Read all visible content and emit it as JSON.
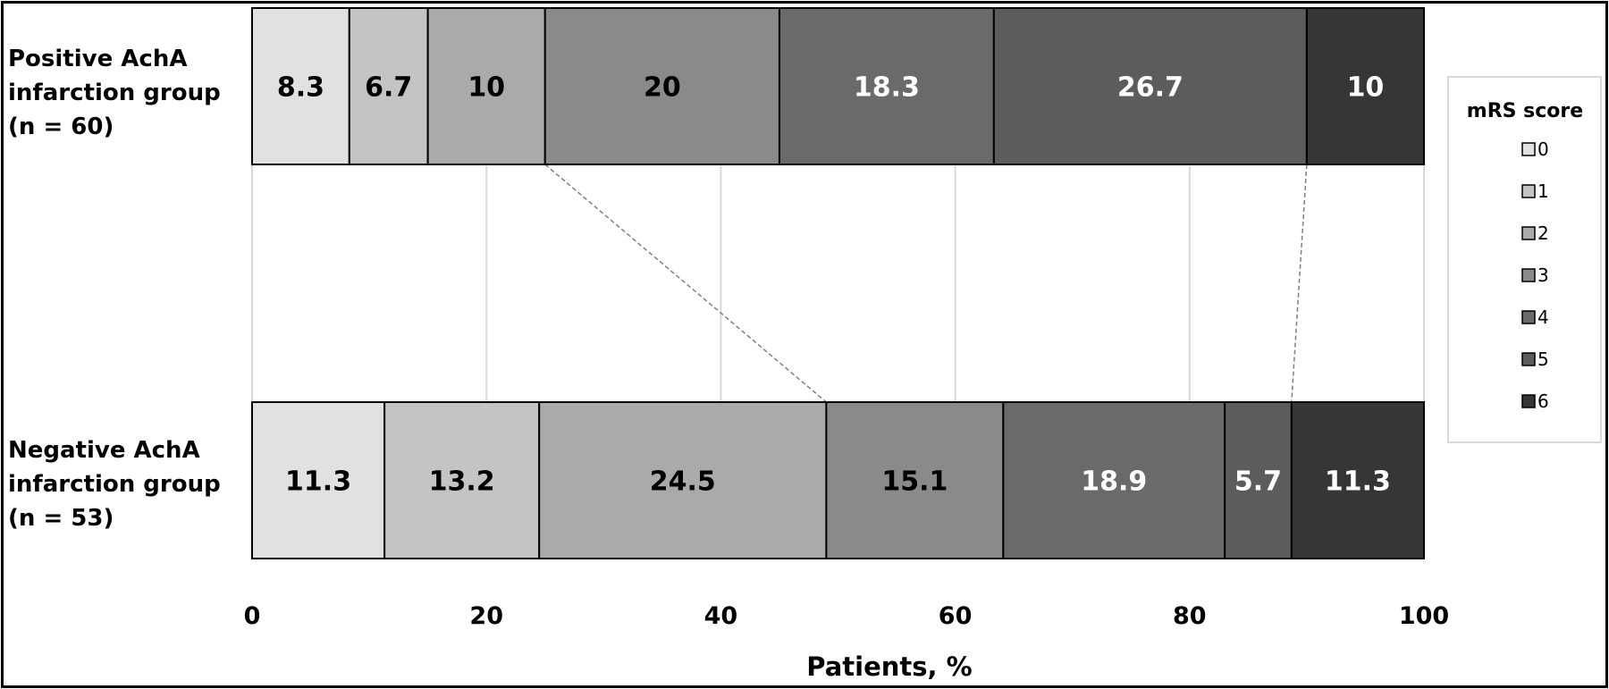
{
  "chart_data": {
    "type": "bar",
    "orientation": "horizontal",
    "stacked": true,
    "categories": [
      [
        "Positive AchA",
        "infarction group",
        "(n = 60)"
      ],
      [
        "Negative AchA",
        "infarction group",
        "(n = 53)"
      ]
    ],
    "series": [
      {
        "name": "0",
        "values": [
          8.3,
          11.3
        ],
        "color": "#e1e1e1",
        "label_color": "#000000"
      },
      {
        "name": "1",
        "values": [
          6.7,
          13.2
        ],
        "color": "#c4c4c4",
        "label_color": "#000000"
      },
      {
        "name": "2",
        "values": [
          10,
          24.5
        ],
        "color": "#aaaaaa",
        "label_color": "#000000"
      },
      {
        "name": "3",
        "values": [
          20,
          15.1
        ],
        "color": "#8a8a8a",
        "label_color": "#000000"
      },
      {
        "name": "4",
        "values": [
          18.3,
          18.9
        ],
        "color": "#6a6a6a",
        "label_color": "#ffffff"
      },
      {
        "name": "5",
        "values": [
          26.7,
          5.7
        ],
        "color": "#5c5c5c",
        "label_color": "#ffffff"
      },
      {
        "name": "6",
        "values": [
          10,
          11.3
        ],
        "color": "#363636",
        "label_color": "#ffffff"
      }
    ],
    "value_labels": [
      [
        "8.3",
        "6.7",
        "10",
        "20",
        "18.3",
        "26.7",
        "10"
      ],
      [
        "11.3",
        "13.2",
        "24.5",
        "15.1",
        "18.9",
        "5.7",
        "11.3"
      ]
    ],
    "xlabel": "Patients, %",
    "xlim": [
      0,
      100
    ],
    "xticks": [
      "0",
      "20",
      "40",
      "60",
      "80",
      "100"
    ],
    "grid": "vertical",
    "legend": {
      "title": "mRS score",
      "position": "right"
    },
    "connectors": [
      {
        "boundary_after_series": "2",
        "style": "dashed"
      },
      {
        "boundary_after_series": "5",
        "style": "dashed"
      }
    ]
  }
}
